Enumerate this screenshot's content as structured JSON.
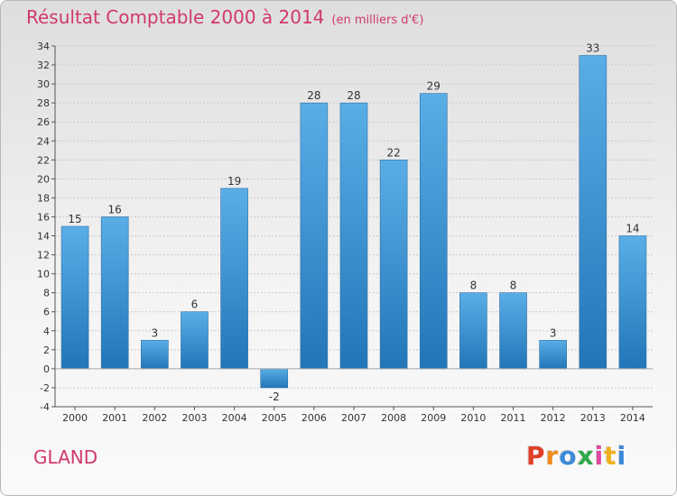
{
  "header": {
    "title": "Résultat Comptable 2000 à 2014",
    "subtitle": "(en milliers d'€)"
  },
  "footer": {
    "place": "GLAND",
    "logo_text": "Proxiti"
  },
  "colors": {
    "title": "#d0396a",
    "bar_top": "#5aaee6",
    "bar_bottom": "#2276b8",
    "logo_letters": [
      "#e0402a",
      "#f08c1e",
      "#3c8ad8",
      "#2fa84a",
      "#e04aa0",
      "#f0b01e",
      "#3c8ad8"
    ]
  },
  "chart_data": {
    "type": "bar",
    "categories": [
      "2000",
      "2001",
      "2002",
      "2003",
      "2004",
      "2005",
      "2006",
      "2007",
      "2008",
      "2009",
      "2010",
      "2011",
      "2012",
      "2013",
      "2014"
    ],
    "values": [
      15,
      16,
      3,
      6,
      19,
      -2,
      28,
      28,
      22,
      29,
      8,
      8,
      3,
      33,
      14
    ],
    "labels": [
      "15",
      "16",
      "3",
      "6",
      "19",
      "-2",
      "28",
      "28",
      "22",
      "29",
      "8",
      "8",
      "3",
      "33",
      "14"
    ],
    "ylim": [
      -4,
      34
    ],
    "ystep": 2,
    "yticks": [
      "-4",
      "-2",
      "0",
      "2",
      "4",
      "6",
      "8",
      "10",
      "12",
      "14",
      "16",
      "18",
      "20",
      "22",
      "24",
      "26",
      "28",
      "30",
      "32",
      "34"
    ],
    "grid": true,
    "xlabel": "",
    "ylabel": ""
  }
}
